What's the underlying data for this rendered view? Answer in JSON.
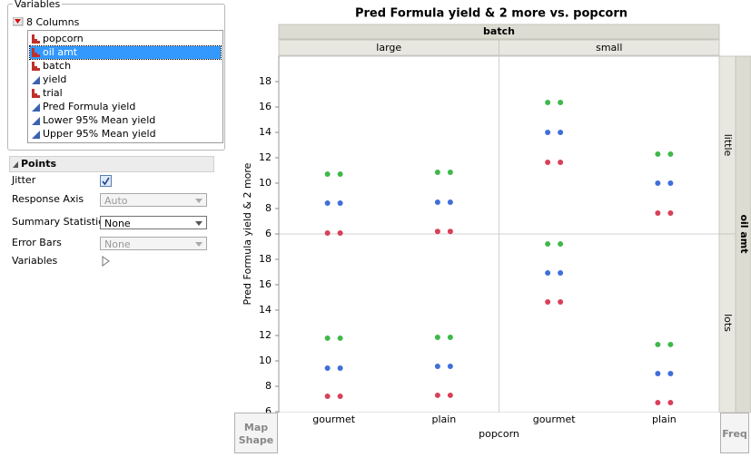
{
  "variables": {
    "title": "Variables",
    "count_label": "8 Columns",
    "columns": [
      {
        "name": "popcorn",
        "type": "nominal"
      },
      {
        "name": "oil amt",
        "type": "nominal"
      },
      {
        "name": "batch",
        "type": "nominal"
      },
      {
        "name": "yield",
        "type": "continuous"
      },
      {
        "name": "trial",
        "type": "nominal"
      },
      {
        "name": "Pred Formula yield",
        "type": "continuous"
      },
      {
        "name": "Lower 95% Mean yield",
        "type": "continuous"
      },
      {
        "name": "Upper 95% Mean yield",
        "type": "continuous"
      }
    ],
    "selected": 1
  },
  "points": {
    "title": "Points",
    "options": [
      {
        "label": "Jitter",
        "checked": true
      },
      {
        "label": "Response Axis",
        "value": "Auto",
        "enabled": false
      },
      {
        "label": "Summary Statistic",
        "value": "None",
        "enabled": true
      },
      {
        "label": "Error Bars",
        "value": "None",
        "enabled": false
      },
      {
        "label": "Variables"
      }
    ]
  },
  "drop_zones": {
    "map_shape": "Map Shape",
    "freq": "Freq"
  },
  "chart_data": {
    "type": "dot",
    "title": "Pred Formula yield & 2 more vs. popcorn",
    "x_label": "popcorn",
    "y_label": "Pred Formula yield & 2 more",
    "column_facet": {
      "label": "batch",
      "levels": [
        "large",
        "small"
      ]
    },
    "row_facet": {
      "label": "oil amt",
      "levels": [
        "little",
        "lots"
      ]
    },
    "categories": [
      "gourmet",
      "plain"
    ],
    "ylim": [
      6,
      20
    ],
    "yticks": [
      6,
      8,
      10,
      12,
      14,
      16,
      18
    ],
    "jitter": true,
    "series": [
      {
        "color": "#3f6fd8",
        "values": [
          [
            [
              8.43,
              8.5
            ],
            [
              14,
              10
            ]
          ],
          [
            [
              9.43,
              9.57
            ],
            [
              16.93,
              9
            ]
          ]
        ]
      },
      {
        "color": "#d8405a",
        "values": [
          [
            [
              6.07,
              6.2
            ],
            [
              11.64,
              7.64
            ]
          ],
          [
            [
              7.21,
              7.29
            ],
            [
              14.64,
              6.71
            ]
          ]
        ]
      },
      {
        "color": "#3fb84a",
        "values": [
          [
            [
              10.71,
              10.86
            ],
            [
              16.36,
              12.29
            ]
          ],
          [
            [
              11.79,
              11.86
            ],
            [
              19.21,
              11.29
            ]
          ]
        ]
      }
    ]
  }
}
